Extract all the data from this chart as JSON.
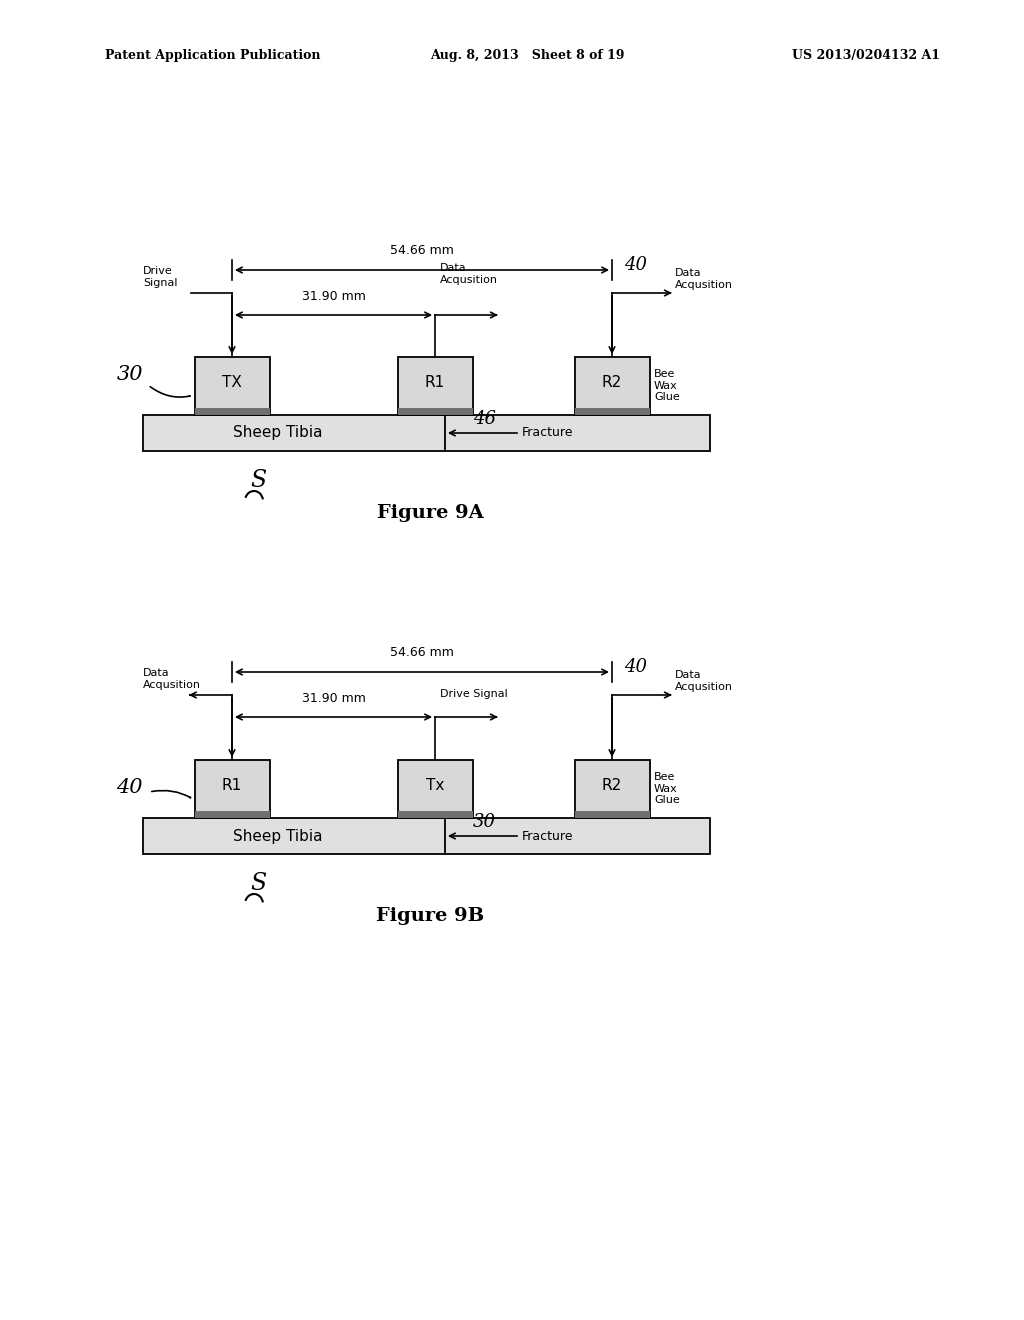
{
  "bg_color": "#ffffff",
  "header_left": "Patent Application Publication",
  "header_mid": "Aug. 8, 2013   Sheet 8 of 19",
  "header_right": "US 2013/0204132 A1",
  "fig9a": {
    "title": "Figure 9A",
    "dim_54_66": "54.66 mm",
    "dim_31_90": "31.90 mm",
    "tibia_label": "Sheep Tibia",
    "fracture_label": "Fracture",
    "tx_label": "TX",
    "r1_label": "R1",
    "r2_label": "R2",
    "drive_signal": "Drive\nSignal",
    "data_acq_mid": "Data\nAcqusition",
    "data_acq_right": "Data\nAcqusition",
    "bee_wax": "Bee\nWax\nGlue",
    "label_30": "30",
    "label_40": "40",
    "label_46": "46"
  },
  "fig9b": {
    "title": "Figure 9B",
    "dim_54_66": "54.66 mm",
    "dim_31_90": "31.90 mm",
    "tibia_label": "Sheep Tibia",
    "fracture_label": "Fracture",
    "tx_label": "Tx",
    "r1_label": "R1",
    "r2_label": "R2",
    "data_acq_left": "Data\nAcqusition",
    "drive_signal": "Drive Signal",
    "data_acq_right": "Data\nAcqusition",
    "bee_wax": "Bee\nWax\nGlue",
    "label_30": "30",
    "label_40_left": "40",
    "label_40_right": "40"
  }
}
